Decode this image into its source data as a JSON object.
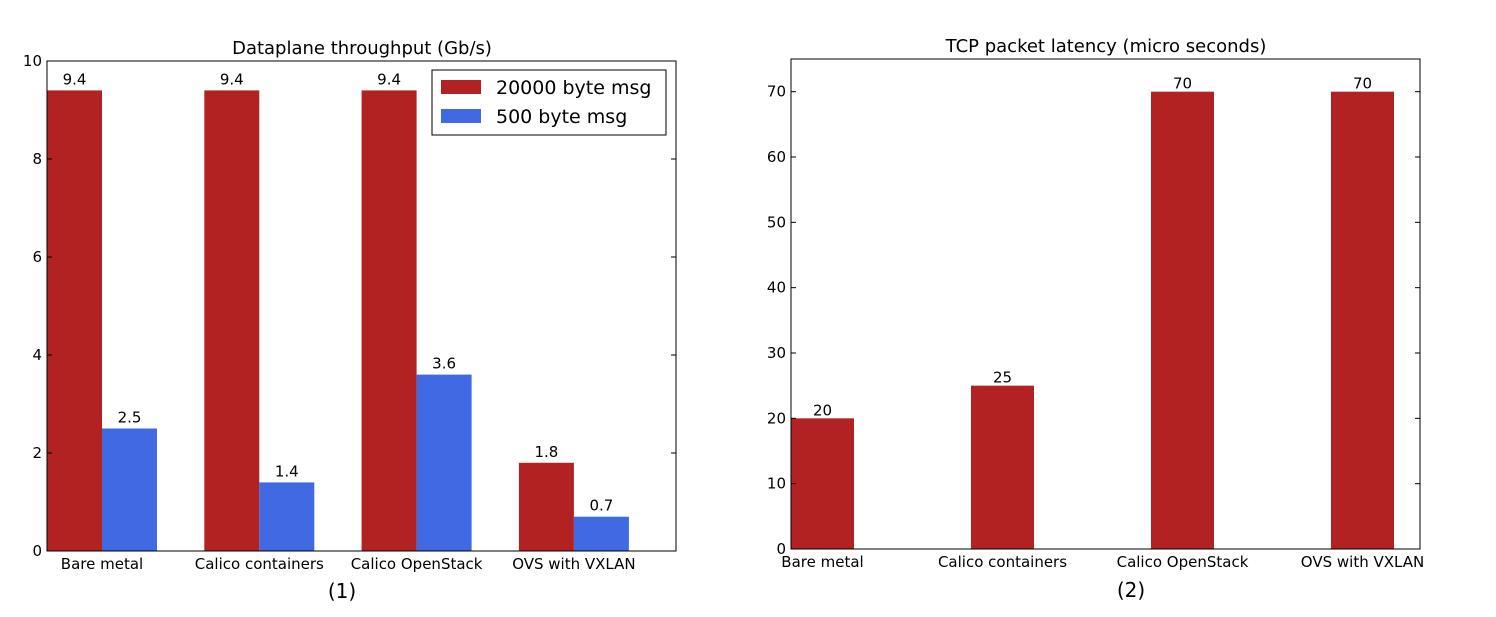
{
  "colors": {
    "red": "#b22222",
    "blue": "#4169e1"
  },
  "chart_data": [
    {
      "type": "bar",
      "title": "Dataplane throughput (Gb/s)",
      "panel_label": "(1)",
      "categories": [
        "Bare metal",
        "Calico containers",
        "Calico OpenStack",
        "OVS with VXLAN"
      ],
      "series": [
        {
          "name": "20000 byte msg",
          "values": [
            9.4,
            9.4,
            9.4,
            1.8
          ],
          "labels": [
            "9.4",
            "9.4",
            "9.4",
            "1.8"
          ],
          "color": "#b22222"
        },
        {
          "name": "500 byte msg",
          "values": [
            2.5,
            1.4,
            3.6,
            0.7
          ],
          "labels": [
            "2.5",
            "1.4",
            "3.6",
            "0.7"
          ],
          "color": "#4169e1"
        }
      ],
      "ylim": [
        0,
        10
      ],
      "yticks": [
        0,
        2,
        4,
        6,
        8,
        10
      ],
      "legend": "top-right",
      "grid": false
    },
    {
      "type": "bar",
      "title": "TCP packet latency (micro seconds)",
      "panel_label": "(2)",
      "categories": [
        "Bare metal",
        "Calico containers",
        "Calico OpenStack",
        "OVS with VXLAN"
      ],
      "series": [
        {
          "values": [
            20,
            25,
            70,
            70
          ],
          "labels": [
            "20",
            "25",
            "70",
            "70"
          ],
          "color": "#b22222"
        }
      ],
      "ylim": [
        0,
        75
      ],
      "yticks": [
        0,
        10,
        20,
        30,
        40,
        50,
        60,
        70
      ],
      "grid": false
    }
  ]
}
